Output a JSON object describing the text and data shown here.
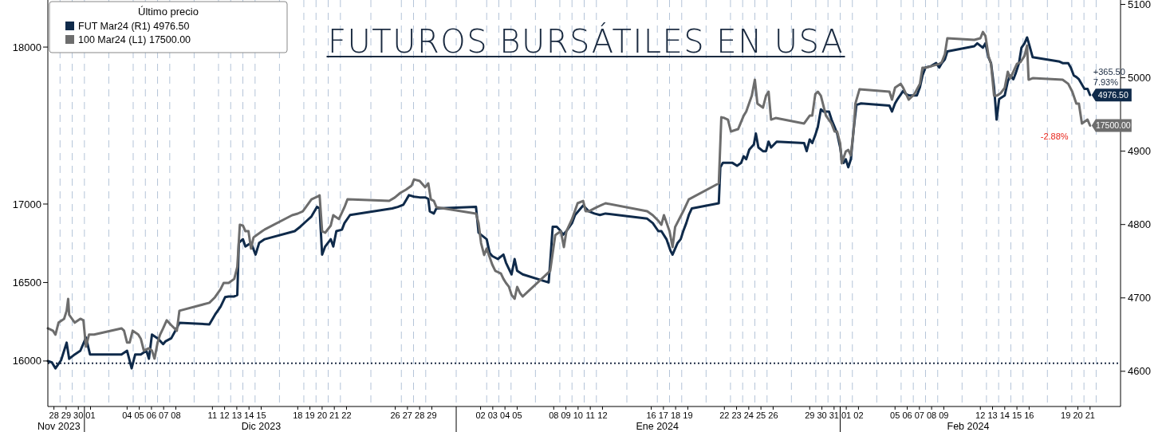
{
  "chart_data": {
    "type": "line",
    "title": "FUTUROS BURSÁTILES EN USA",
    "legend_title": "Último precio",
    "legend": "top left",
    "grid": "x",
    "line_style": "solid",
    "xlim": [
      "2023-11-28T00:00",
      "2024-02-24T00:00"
    ],
    "xticks": [
      {
        "value": "2023-11-28T12:00",
        "label": "28"
      },
      {
        "value": "2023-11-29T12:00",
        "label": "29"
      },
      {
        "value": "2023-11-30T12:00",
        "label": "30"
      },
      {
        "value": "2023-12-01T12:00",
        "label": "01"
      },
      {
        "value": "2023-12-04T12:00",
        "label": "04"
      },
      {
        "value": "2023-12-05T12:00",
        "label": "05"
      },
      {
        "value": "2023-12-06T12:00",
        "label": "06"
      },
      {
        "value": "2023-12-07T12:00",
        "label": "07"
      },
      {
        "value": "2023-12-08T12:00",
        "label": "08"
      },
      {
        "value": "2023-12-11T12:00",
        "label": "11"
      },
      {
        "value": "2023-12-12T12:00",
        "label": "12"
      },
      {
        "value": "2023-12-13T12:00",
        "label": "13"
      },
      {
        "value": "2023-12-14T12:00",
        "label": "14"
      },
      {
        "value": "2023-12-15T12:00",
        "label": "15"
      },
      {
        "value": "2023-12-18T12:00",
        "label": "18"
      },
      {
        "value": "2023-12-19T12:00",
        "label": "19"
      },
      {
        "value": "2023-12-20T12:00",
        "label": "20"
      },
      {
        "value": "2023-12-21T12:00",
        "label": "21"
      },
      {
        "value": "2023-12-22T12:00",
        "label": "22"
      },
      {
        "value": "2023-12-26T12:00",
        "label": "26"
      },
      {
        "value": "2023-12-27T12:00",
        "label": "27"
      },
      {
        "value": "2023-12-28T12:00",
        "label": "28"
      },
      {
        "value": "2023-12-29T12:00",
        "label": "29"
      },
      {
        "value": "2024-01-02T12:00",
        "label": "02"
      },
      {
        "value": "2024-01-03T12:00",
        "label": "03"
      },
      {
        "value": "2024-01-04T12:00",
        "label": "04"
      },
      {
        "value": "2024-01-05T12:00",
        "label": "05"
      },
      {
        "value": "2024-01-08T12:00",
        "label": "08"
      },
      {
        "value": "2024-01-09T12:00",
        "label": "09"
      },
      {
        "value": "2024-01-10T12:00",
        "label": "10"
      },
      {
        "value": "2024-01-11T12:00",
        "label": "11"
      },
      {
        "value": "2024-01-12T12:00",
        "label": "12"
      },
      {
        "value": "2024-01-16T12:00",
        "label": "16"
      },
      {
        "value": "2024-01-17T12:00",
        "label": "17"
      },
      {
        "value": "2024-01-18T12:00",
        "label": "18"
      },
      {
        "value": "2024-01-19T12:00",
        "label": "19"
      },
      {
        "value": "2024-01-22T12:00",
        "label": "22"
      },
      {
        "value": "2024-01-23T12:00",
        "label": "23"
      },
      {
        "value": "2024-01-24T12:00",
        "label": "24"
      },
      {
        "value": "2024-01-25T12:00",
        "label": "25"
      },
      {
        "value": "2024-01-26T12:00",
        "label": "26"
      },
      {
        "value": "2024-01-29T12:00",
        "label": "29"
      },
      {
        "value": "2024-01-30T12:00",
        "label": "30"
      },
      {
        "value": "2024-01-31T12:00",
        "label": "31"
      },
      {
        "value": "2024-02-01T12:00",
        "label": "01"
      },
      {
        "value": "2024-02-02T12:00",
        "label": "02"
      },
      {
        "value": "2024-02-05T12:00",
        "label": "05"
      },
      {
        "value": "2024-02-06T12:00",
        "label": "06"
      },
      {
        "value": "2024-02-07T12:00",
        "label": "07"
      },
      {
        "value": "2024-02-08T12:00",
        "label": "08"
      },
      {
        "value": "2024-02-09T12:00",
        "label": "09"
      },
      {
        "value": "2024-02-12T12:00",
        "label": "12"
      },
      {
        "value": "2024-02-13T12:00",
        "label": "13"
      },
      {
        "value": "2024-02-14T12:00",
        "label": "14"
      },
      {
        "value": "2024-02-15T12:00",
        "label": "15"
      },
      {
        "value": "2024-02-16T12:00",
        "label": "16"
      },
      {
        "value": "2024-02-19T12:00",
        "label": "19"
      },
      {
        "value": "2024-02-20T12:00",
        "label": "20"
      },
      {
        "value": "2024-02-21T12:00",
        "label": "21"
      }
    ],
    "ylim": [
      15710,
      18300
    ],
    "yticks": [
      16000,
      16500,
      17000,
      18000
    ],
    "y2lim": [
      4552,
      5106
    ],
    "y2ticks": [
      4600,
      4700,
      4800,
      4900,
      5000,
      5100
    ],
    "ref_lines": [
      {
        "axis": "y2",
        "value": 4611,
        "line_style": "dotted",
        "color": "#1f2d45"
      }
    ],
    "annotations": [
      "Nov 2023",
      "Dic 2023",
      "Ene 2024",
      "Feb 2024",
      "+365.50",
      "7.93%",
      "-2.88%"
    ],
    "series": [
      {
        "name": "FUT Mar24 (R1)   4976.50",
        "color": "#0f2a4a",
        "axis": "y2",
        "x": [
          "2023-11-28T00:00",
          "2023-11-28T08:00",
          "2023-11-28T15:00",
          "2023-11-29T02:00",
          "2023-11-29T13:00",
          "2023-11-29T18:00",
          "2023-11-30T05:00",
          "2023-11-30T16:00",
          "2023-12-01T03:00",
          "2023-12-01T11:00",
          "2023-12-04T01:00",
          "2023-12-04T12:00",
          "2023-12-04T21:00",
          "2023-12-05T04:00",
          "2023-12-05T15:00",
          "2023-12-06T02:00",
          "2023-12-06T07:00",
          "2023-12-06T13:00",
          "2023-12-07T00:00",
          "2023-12-07T11:00",
          "2023-12-07T16:00",
          "2023-12-08T03:00",
          "2023-12-08T14:00",
          "2023-12-08T19:00",
          "2023-12-11T06:00",
          "2023-12-11T17:00",
          "2023-12-12T04:00",
          "2023-12-12T13:00",
          "2023-12-12T20:00",
          "2023-12-13T07:00",
          "2023-12-13T13:00",
          "2023-12-13T16:00",
          "2023-12-14T00:00",
          "2023-12-14T05:00",
          "2023-12-14T16:00",
          "2023-12-15T01:00",
          "2023-12-15T08:00",
          "2023-12-15T19:00",
          "2023-12-18T06:00",
          "2023-12-18T17:00",
          "2023-12-19T04:00",
          "2023-12-19T15:00",
          "2023-12-20T02:00",
          "2023-12-20T07:00",
          "2023-12-20T12:00",
          "2023-12-20T18:00",
          "2023-12-21T05:00",
          "2023-12-21T10:00",
          "2023-12-21T16:00",
          "2023-12-22T03:00",
          "2023-12-22T08:00",
          "2023-12-22T19:00",
          "2023-12-26T06:00",
          "2023-12-26T17:00",
          "2023-12-27T04:00",
          "2023-12-27T15:00",
          "2023-12-28T01:00",
          "2023-12-28T12:00",
          "2023-12-28T23:00",
          "2023-12-29T05:00",
          "2023-12-29T08:00",
          "2023-12-29T16:00",
          "2023-12-29T21:00",
          "2024-01-02T03:00",
          "2024-01-02T08:00",
          "2024-01-02T13:00",
          "2024-01-03T00:00",
          "2024-01-03T06:00",
          "2024-01-03T11:00",
          "2024-01-03T22:00",
          "2024-01-04T09:00",
          "2024-01-04T14:00",
          "2024-01-05T01:00",
          "2024-01-05T07:00",
          "2024-01-05T12:00",
          "2024-01-05T23:00",
          "2024-01-08T02:00",
          "2024-01-08T05:00",
          "2024-01-08T10:00",
          "2024-01-08T18:00",
          "2024-01-09T02:00",
          "2024-01-09T06:00",
          "2024-01-09T13:00",
          "2024-01-10T00:00",
          "2024-01-10T06:00",
          "2024-01-10T17:00",
          "2024-01-10T22:00",
          "2024-01-11T09:00",
          "2024-01-11T20:00",
          "2024-01-12T07:00",
          "2024-01-12T18:00",
          "2024-01-16T04:00",
          "2024-01-16T15:00",
          "2024-01-17T02:00",
          "2024-01-17T08:00",
          "2024-01-17T18:00",
          "2024-01-18T02:00",
          "2024-01-18T06:00",
          "2024-01-18T16:00",
          "2024-01-18T22:00",
          "2024-01-19T03:00",
          "2024-01-19T09:00",
          "2024-01-19T14:00",
          "2024-01-19T20:00",
          "2024-01-22T01:00",
          "2024-01-22T04:00",
          "2024-01-22T09:00",
          "2024-01-22T17:00",
          "2024-01-23T04:00",
          "2024-01-23T13:00",
          "2024-01-23T21:00",
          "2024-01-24T02:00",
          "2024-01-24T07:00",
          "2024-01-24T13:00",
          "2024-01-24T22:00",
          "2024-01-25T02:00",
          "2024-01-25T07:00",
          "2024-01-25T16:00",
          "2024-01-25T22:00",
          "2024-01-26T03:00",
          "2024-01-26T08:00",
          "2024-01-26T19:00",
          "2024-01-29T01:00",
          "2024-01-29T06:00",
          "2024-01-29T12:00",
          "2024-01-29T17:00",
          "2024-01-29T23:00",
          "2024-01-30T04:00",
          "2024-01-30T10:00",
          "2024-01-30T15:00",
          "2024-01-31T02:00",
          "2024-01-31T07:00",
          "2024-01-31T13:00",
          "2024-01-31T18:00",
          "2024-02-01T00:00",
          "2024-02-01T03:00",
          "2024-02-01T07:00",
          "2024-02-01T11:00",
          "2024-02-01T16:00",
          "2024-02-01T21:00",
          "2024-02-02T03:00",
          "2024-02-02T08:00",
          "2024-02-02T17:00",
          "2024-02-05T01:00",
          "2024-02-05T06:00",
          "2024-02-05T12:00",
          "2024-02-05T17:00",
          "2024-02-06T04:00",
          "2024-02-06T09:00",
          "2024-02-06T15:00",
          "2024-02-07T07:00",
          "2024-02-07T13:00",
          "2024-02-07T18:00",
          "2024-02-08T00:00",
          "2024-02-08T11:00",
          "2024-02-08T21:00",
          "2024-02-09T03:00",
          "2024-02-09T08:00",
          "2024-02-09T14:00",
          "2024-02-09T19:00",
          "2024-02-12T00:00",
          "2024-02-12T06:00",
          "2024-02-12T17:00",
          "2024-02-12T22:00",
          "2024-02-13T04:00",
          "2024-02-13T09:00",
          "2024-02-13T15:00",
          "2024-02-13T20:00",
          "2024-02-14T01:00",
          "2024-02-14T12:00",
          "2024-02-14T18:00",
          "2024-02-14T23:00",
          "2024-02-15T05:00",
          "2024-02-15T10:00",
          "2024-02-15T16:00",
          "2024-02-15T21:00",
          "2024-02-16T03:00",
          "2024-02-16T08:00",
          "2024-02-16T13:00",
          "2024-02-16T19:00",
          "2024-02-19T00:00",
          "2024-02-19T06:00",
          "2024-02-19T17:00",
          "2024-02-19T22:00",
          "2024-02-20T04:00",
          "2024-02-20T09:00",
          "2024-02-20T14:00",
          "2024-02-21T01:00",
          "2024-02-21T07:00",
          "2024-02-21T12:00"
        ],
        "values": [
          4614,
          4612,
          4604,
          4615,
          4639,
          4617,
          4623,
          4628,
          4646,
          4623,
          4623,
          4628,
          4604,
          4623,
          4623,
          4628,
          4617,
          4650,
          4645,
          4637,
          4641,
          4645,
          4659,
          4666,
          4664,
          4677,
          4688,
          4701,
          4702,
          4702,
          4704,
          4775,
          4780,
          4770,
          4775,
          4759,
          4775,
          4780,
          4791,
          4797,
          4804,
          4811,
          4824,
          4822,
          4759,
          4770,
          4780,
          4770,
          4791,
          4793,
          4802,
          4813,
          4822,
          4824,
          4827,
          4840,
          4838,
          4837,
          4837,
          4835,
          4818,
          4815,
          4822,
          4824,
          4789,
          4786,
          4780,
          4761,
          4757,
          4753,
          4759,
          4748,
          4732,
          4753,
          4737,
          4732,
          4721,
          4748,
          4797,
          4797,
          4791,
          4786,
          4791,
          4802,
          4813,
          4822,
          4826,
          4818,
          4815,
          4813,
          4815,
          4808,
          4802,
          4791,
          4791,
          4780,
          4764,
          4759,
          4775,
          4780,
          4791,
          4802,
          4813,
          4822,
          4829,
          4878,
          4884,
          4884,
          4884,
          4880,
          4884,
          4893,
          4889,
          4902,
          4909,
          4924,
          4905,
          4900,
          4900,
          4913,
          4905,
          4913,
          4911,
          4900,
          4916,
          4911,
          4922,
          4933,
          4957,
          4954,
          4954,
          4943,
          4933,
          4924,
          4905,
          4891,
          4884,
          4889,
          4878,
          4889,
          4933,
          4963,
          4965,
          4962,
          4954,
          4965,
          4971,
          4982,
          4978,
          4976,
          4976,
          4987,
          5003,
          5014,
          5016,
          5020,
          5014,
          5020,
          5025,
          5036,
          5043,
          5047,
          5041,
          5047,
          5028,
          5020,
          4987,
          4943,
          4971,
          4976,
          4995,
          5003,
          4998,
          5007,
          5020,
          5041,
          5047,
          5055,
          5043,
          5028,
          5022,
          5020,
          5020,
          5014,
          5003,
          5001,
          4998,
          4985,
          4985,
          4976.5
        ],
        "value_labels": [
          null,
          null,
          null,
          null,
          null,
          null,
          null,
          null,
          null,
          null,
          null,
          null,
          null,
          null,
          null,
          null,
          null,
          null,
          null,
          null,
          null,
          null,
          null,
          null,
          null,
          null,
          null,
          null,
          null,
          null,
          null,
          null,
          null,
          null,
          null,
          null,
          null,
          null,
          null,
          null,
          null,
          null,
          null,
          null,
          null,
          null,
          null,
          null,
          null,
          null,
          null,
          null,
          null,
          null,
          null,
          null,
          null,
          null,
          null,
          null,
          null,
          null,
          null,
          null,
          null,
          null,
          null,
          null,
          null,
          null,
          null,
          null,
          null,
          null,
          null,
          null,
          null,
          null,
          null,
          null,
          null,
          null,
          null,
          null,
          null,
          null,
          null,
          null,
          null,
          null,
          null,
          null,
          null,
          null,
          null,
          null,
          null,
          null,
          null,
          null,
          null,
          null,
          null,
          null,
          null,
          null,
          null,
          null,
          null,
          null,
          null,
          null,
          null,
          null,
          null,
          null,
          null,
          null,
          null,
          null,
          null,
          null,
          null,
          null,
          null,
          null,
          null,
          null,
          null,
          null,
          null,
          null,
          null,
          null,
          null,
          null,
          null,
          null,
          null,
          null,
          null,
          null,
          null,
          null,
          null,
          null,
          null,
          null,
          null,
          null,
          null,
          null,
          null,
          null,
          null,
          null,
          null,
          null,
          null,
          null,
          null,
          null,
          null,
          null,
          null,
          null,
          null,
          null,
          null,
          null,
          null,
          null,
          null,
          null,
          null,
          null,
          null,
          null,
          null,
          null,
          null,
          null,
          null,
          null,
          null,
          null,
          null,
          null,
          null,
          "4976.50"
        ]
      },
      {
        "name": "100 Mar24 (L1)   17500.00",
        "color": "#6d6d6d",
        "x": [
          "2023-11-28T00:00",
          "2023-11-28T10:00",
          "2023-11-28T15:00",
          "2023-11-28T21:00",
          "2023-11-29T08:00",
          "2023-11-29T13:00",
          "2023-11-29T16:00",
          "2023-11-29T18:00",
          "2023-11-30T05:00",
          "2023-11-30T16:00",
          "2023-11-30T22:00",
          "2023-12-01T03:00",
          "2023-12-01T09:00",
          "2023-12-01T19:00",
          "2023-12-04T01:00",
          "2023-12-04T06:00",
          "2023-12-04T12:00",
          "2023-12-04T17:00",
          "2023-12-04T23:00",
          "2023-12-05T10:00",
          "2023-12-05T15:00",
          "2023-12-05T21:00",
          "2023-12-06T07:00",
          "2023-12-06T13:00",
          "2023-12-06T18:00",
          "2023-12-07T00:00",
          "2023-12-07T05:00",
          "2023-12-07T11:00",
          "2023-12-07T18:00",
          "2023-12-08T03:00",
          "2023-12-08T14:00",
          "2023-12-08T19:00",
          "2023-12-11T06:00",
          "2023-12-11T17:00",
          "2023-12-12T04:00",
          "2023-12-12T10:00",
          "2023-12-12T20:00",
          "2023-12-13T07:00",
          "2023-12-13T13:00",
          "2023-12-13T18:00",
          "2023-12-14T00:00",
          "2023-12-14T05:00",
          "2023-12-14T11:00",
          "2023-12-14T16:00",
          "2023-12-14T21:00",
          "2023-12-15T03:00",
          "2023-12-15T14:00",
          "2023-12-15T19:00",
          "2023-12-18T01:00",
          "2023-12-18T12:00",
          "2023-12-18T22:00",
          "2023-12-19T04:00",
          "2023-12-19T15:00",
          "2023-12-20T02:00",
          "2023-12-20T07:00",
          "2023-12-20T12:00",
          "2023-12-20T18:00",
          "2023-12-21T05:00",
          "2023-12-21T10:00",
          "2023-12-21T21:00",
          "2023-12-22T08:00",
          "2023-12-22T14:00",
          "2023-12-26T00:00",
          "2023-12-26T11:00",
          "2023-12-26T22:00",
          "2023-12-27T09:00",
          "2023-12-27T20:00",
          "2023-12-28T01:00",
          "2023-12-28T12:00",
          "2023-12-28T23:00",
          "2023-12-29T05:00",
          "2023-12-29T10:00",
          "2023-12-29T16:00",
          "2023-12-29T21:00",
          "2024-01-02T03:00",
          "2024-01-02T08:00",
          "2024-01-02T13:00",
          "2024-01-02T19:00",
          "2024-01-03T00:00",
          "2024-01-03T11:00",
          "2024-01-03T17:00",
          "2024-01-04T04:00",
          "2024-01-04T09:00",
          "2024-01-04T14:00",
          "2024-01-04T20:00",
          "2024-01-05T01:00",
          "2024-01-05T07:00",
          "2024-01-05T12:00",
          "2024-01-05T18:00",
          "2024-01-05T23:00",
          "2024-01-08T05:00",
          "2024-01-08T15:00",
          "2024-01-09T02:00",
          "2024-01-09T08:00",
          "2024-01-09T13:00",
          "2024-01-10T00:00",
          "2024-01-10T11:00",
          "2024-01-10T22:00",
          "2024-01-11T03:00",
          "2024-01-11T09:00",
          "2024-01-12T01:00",
          "2024-01-12T18:00",
          "2024-01-16T04:00",
          "2024-01-16T15:00",
          "2024-01-17T02:00",
          "2024-01-17T08:00",
          "2024-01-17T13:00",
          "2024-01-18T00:00",
          "2024-01-18T06:00",
          "2024-01-18T11:00",
          "2024-01-19T03:00",
          "2024-01-19T14:00",
          "2024-01-22T01:00",
          "2024-01-22T06:00",
          "2024-01-22T12:00",
          "2024-01-22T19:00",
          "2024-01-23T01:00",
          "2024-01-23T10:00",
          "2024-01-23T15:00",
          "2024-01-24T02:00",
          "2024-01-24T07:00",
          "2024-01-24T18:00",
          "2024-01-25T00:00",
          "2024-01-25T05:00",
          "2024-01-25T16:00",
          "2024-01-25T22:00",
          "2024-01-26T03:00",
          "2024-01-26T08:00",
          "2024-01-26T17:00",
          "2024-01-29T01:00",
          "2024-01-29T12:00",
          "2024-01-29T17:00",
          "2024-01-29T23:00",
          "2024-01-30T04:00",
          "2024-01-30T10:00",
          "2024-01-30T20:00",
          "2024-01-31T07:00",
          "2024-01-31T13:00",
          "2024-01-31T18:00",
          "2024-02-01T00:00",
          "2024-02-01T03:00",
          "2024-02-01T11:00",
          "2024-02-01T16:00",
          "2024-02-01T21:00",
          "2024-02-02T03:00",
          "2024-02-02T06:00",
          "2024-02-02T14:00",
          "2024-02-05T01:00",
          "2024-02-05T06:00",
          "2024-02-05T12:00",
          "2024-02-05T23:00",
          "2024-02-06T04:00",
          "2024-02-06T15:00",
          "2024-02-07T02:00",
          "2024-02-07T13:00",
          "2024-02-07T18:00",
          "2024-02-08T00:00",
          "2024-02-08T11:00",
          "2024-02-09T03:00",
          "2024-02-09T08:00",
          "2024-02-09T14:00",
          "2024-02-09T19:00",
          "2024-02-12T00:00",
          "2024-02-12T12:00",
          "2024-02-12T17:00",
          "2024-02-12T22:00",
          "2024-02-13T04:00",
          "2024-02-13T09:00",
          "2024-02-13T15:00",
          "2024-02-13T20:00",
          "2024-02-14T04:00",
          "2024-02-14T12:00",
          "2024-02-14T18:00",
          "2024-02-14T23:00",
          "2024-02-15T12:00",
          "2024-02-15T19:00",
          "2024-02-16T03:00",
          "2024-02-16T08:00",
          "2024-02-16T11:00",
          "2024-02-16T19:00",
          "2024-02-19T06:00",
          "2024-02-19T17:00",
          "2024-02-20T01:00",
          "2024-02-20T09:00",
          "2024-02-20T14:00",
          "2024-02-20T20:00",
          "2024-02-21T07:00",
          "2024-02-21T12:00"
        ],
        "values": [
          16208,
          16193,
          16168,
          16244,
          16269,
          16320,
          16396,
          16294,
          16244,
          16269,
          16259,
          16091,
          16168,
          16168,
          16208,
          16193,
          16117,
          16117,
          16193,
          16168,
          16142,
          16066,
          16081,
          16066,
          16015,
          16117,
          16168,
          16208,
          16259,
          16228,
          16193,
          16320,
          16371,
          16406,
          16457,
          16497,
          16497,
          16523,
          16599,
          16868,
          16863,
          16827,
          16827,
          16716,
          16787,
          16802,
          16827,
          16838,
          16929,
          16939,
          16954,
          16980,
          17030,
          17046,
          17056,
          16827,
          16817,
          16863,
          16929,
          16904,
          16980,
          17030,
          17020,
          17041,
          17071,
          17091,
          17117,
          17157,
          17147,
          17107,
          17132,
          17030,
          17020,
          16980,
          16939,
          16878,
          16751,
          16675,
          16716,
          16614,
          16574,
          16558,
          16523,
          16497,
          16472,
          16421,
          16396,
          16472,
          16431,
          16411,
          16574,
          16802,
          16827,
          16726,
          16827,
          16904,
          17005,
          17020,
          16954,
          16954,
          16980,
          17005,
          16954,
          16929,
          16893,
          16868,
          16929,
          16827,
          16726,
          16853,
          16954,
          17030,
          17132,
          17553,
          17548,
          17538,
          17462,
          17472,
          17477,
          17563,
          17589,
          17690,
          17792,
          17640,
          17614,
          17690,
          17716,
          17538,
          17548,
          17513,
          17563,
          17563,
          17700,
          17716,
          17690,
          17563,
          17513,
          17462,
          17462,
          17386,
          17259,
          17335,
          17345,
          17310,
          17487,
          17640,
          17731,
          17716,
          17665,
          17741,
          17766,
          17741,
          17665,
          17700,
          17766,
          17868,
          17868,
          17878,
          17893,
          17904,
          17954,
          18056,
          18046,
          18056,
          18096,
          18071,
          17944,
          17893,
          17690,
          17690,
          17706,
          17741,
          17843,
          17802,
          17893,
          17904,
          17944,
          18010,
          17792,
          17802,
          17792,
          17766,
          17716,
          17640,
          17640,
          17513,
          17538,
          17500
        ],
        "value_labels": [
          null,
          null,
          null,
          null,
          null,
          null,
          null,
          null,
          null,
          null,
          null,
          null,
          null,
          null,
          null,
          null,
          null,
          null,
          null,
          null,
          null,
          null,
          null,
          null,
          null,
          null,
          null,
          null,
          null,
          null,
          null,
          null,
          null,
          null,
          null,
          null,
          null,
          null,
          null,
          null,
          null,
          null,
          null,
          null,
          null,
          null,
          null,
          null,
          null,
          null,
          null,
          null,
          null,
          null,
          null,
          null,
          null,
          null,
          null,
          null,
          null,
          null,
          null,
          null,
          null,
          null,
          null,
          null,
          null,
          null,
          null,
          null,
          null,
          null,
          null,
          null,
          null,
          null,
          null,
          null,
          null,
          null,
          null,
          null,
          null,
          null,
          null,
          null,
          null,
          null,
          null,
          null,
          null,
          null,
          null,
          null,
          null,
          null,
          null,
          null,
          null,
          null,
          null,
          null,
          null,
          null,
          null,
          null,
          null,
          null,
          null,
          null,
          null,
          null,
          null,
          null,
          null,
          null,
          null,
          null,
          null,
          null,
          null,
          null,
          null,
          null,
          null,
          null,
          null,
          null,
          null,
          null,
          null,
          null,
          null,
          null,
          null,
          null,
          null,
          null,
          null,
          null,
          null,
          null,
          null,
          null,
          null,
          null,
          null,
          null,
          null,
          null,
          null,
          null,
          null,
          null,
          null,
          null,
          null,
          null,
          null,
          null,
          null,
          null,
          null,
          null,
          null,
          null,
          null,
          null,
          null,
          null,
          null,
          null,
          null,
          null,
          null,
          null,
          null,
          null,
          null,
          null,
          null,
          null,
          null,
          null,
          null,
          "17500.00"
        ]
      }
    ]
  }
}
